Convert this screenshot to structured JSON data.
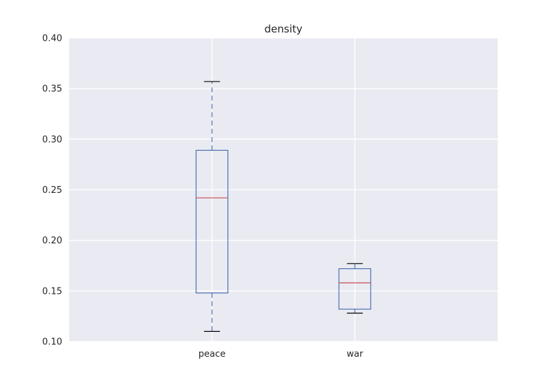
{
  "chart_data": {
    "type": "box",
    "title": "density",
    "xlabel": "",
    "ylabel": "",
    "ylim": [
      0.1,
      0.4
    ],
    "yticks": [
      0.1,
      0.15,
      0.2,
      0.25,
      0.3,
      0.35,
      0.4
    ],
    "ytick_labels": [
      "0.10",
      "0.15",
      "0.20",
      "0.25",
      "0.30",
      "0.35",
      "0.40"
    ],
    "categories": [
      "peace",
      "war"
    ],
    "boxes": [
      {
        "category": "peace",
        "whisker_low": 0.11,
        "q1": 0.148,
        "median": 0.242,
        "q3": 0.289,
        "whisker_high": 0.357
      },
      {
        "category": "war",
        "whisker_low": 0.128,
        "q1": 0.132,
        "median": 0.158,
        "q3": 0.172,
        "whisker_high": 0.177
      }
    ],
    "grid": true,
    "colors": {
      "plot_background": "#EAEAF2",
      "grid": "#FFFFFF",
      "box": "#4C72B0",
      "median": "#C44E52",
      "caps": "#000000",
      "text": "#262626"
    }
  }
}
